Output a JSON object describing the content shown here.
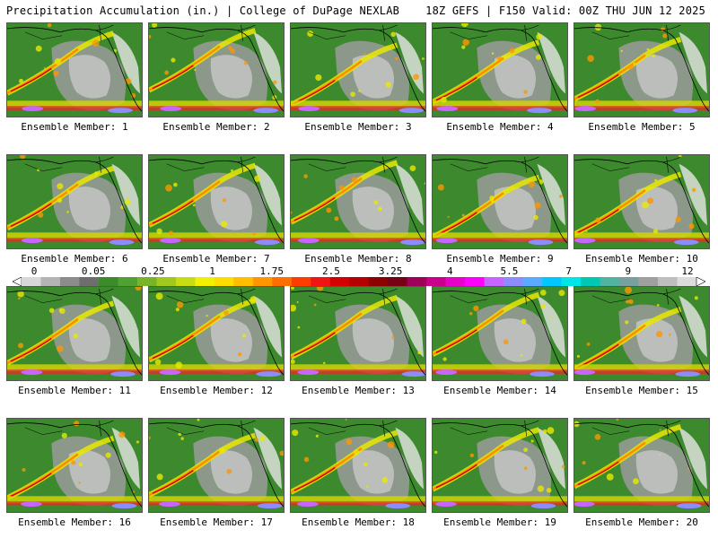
{
  "header": {
    "left_title": "Precipitation Accumulation (in.) | College of DuPage NEXLAB",
    "right_title": "18Z GEFS | F150 Valid: 00Z THU JUN 12 2025"
  },
  "panels": [
    {
      "label": "Ensemble Member: 1"
    },
    {
      "label": "Ensemble Member: 2"
    },
    {
      "label": "Ensemble Member: 3"
    },
    {
      "label": "Ensemble Member: 4"
    },
    {
      "label": "Ensemble Member: 5"
    },
    {
      "label": "Ensemble Member: 6"
    },
    {
      "label": "Ensemble Member: 7"
    },
    {
      "label": "Ensemble Member: 8"
    },
    {
      "label": "Ensemble Member: 9"
    },
    {
      "label": "Ensemble Member: 10"
    },
    {
      "label": "Ensemble Member: 11"
    },
    {
      "label": "Ensemble Member: 12"
    },
    {
      "label": "Ensemble Member: 13"
    },
    {
      "label": "Ensemble Member: 14"
    },
    {
      "label": "Ensemble Member: 15"
    },
    {
      "label": "Ensemble Member: 16"
    },
    {
      "label": "Ensemble Member: 17"
    },
    {
      "label": "Ensemble Member: 18"
    },
    {
      "label": "Ensemble Member: 19"
    },
    {
      "label": "Ensemble Member: 20"
    }
  ],
  "colorbar": {
    "ticks": [
      "0",
      "0.05",
      "0.25",
      "1",
      "1.75",
      "2.5",
      "3.25",
      "4",
      "5.5",
      "7",
      "9",
      "12"
    ],
    "colors": [
      "#d8d8d8",
      "#b4b4b4",
      "#8c8c8c",
      "#6e6e6e",
      "#3c8c2c",
      "#50a032",
      "#78b428",
      "#a0c81e",
      "#c8dc14",
      "#f0f000",
      "#ffdc00",
      "#ffbe00",
      "#ff9600",
      "#ff6e00",
      "#ff3c00",
      "#f01414",
      "#d20000",
      "#b40000",
      "#8c0000",
      "#780014",
      "#a0005a",
      "#c8008c",
      "#e600c8",
      "#ff00ff",
      "#c864ff",
      "#8c8cff",
      "#5aaaff",
      "#00c8ff",
      "#00e6e6",
      "#00c8b4",
      "#50b4a0",
      "#78a0a0",
      "#a0a0a0",
      "#bebebe",
      "#dcdcdc"
    ]
  }
}
